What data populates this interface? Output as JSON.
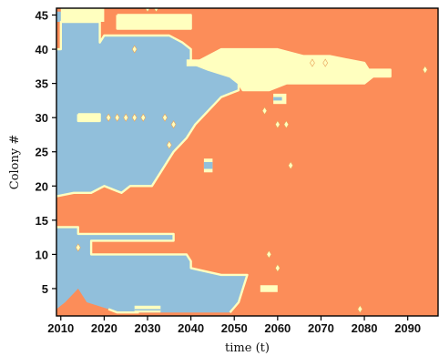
{
  "chart_data": {
    "type": "heatmap",
    "title": "",
    "xlabel": "time (t)",
    "ylabel": "Colony #",
    "xlim": [
      2009,
      2097
    ],
    "ylim": [
      1,
      46
    ],
    "x_ticks": [
      2010,
      2020,
      2030,
      2040,
      2050,
      2060,
      2070,
      2080,
      2090
    ],
    "y_ticks": [
      5,
      10,
      15,
      20,
      25,
      30,
      35,
      40,
      45
    ],
    "colors": {
      "0": "#91bfdb",
      "1": "#ffffbf",
      "2": "#fc8d59"
    },
    "state_legend": {
      "0": "blue",
      "1": "yellow",
      "2": "orange"
    },
    "background_state": 2,
    "regions": [
      {
        "state": 0,
        "polygon": [
          [
            2009,
            45.5
          ],
          [
            2009,
            40
          ],
          [
            2010,
            40
          ],
          [
            2010,
            44
          ],
          [
            2019,
            44
          ],
          [
            2019,
            41
          ],
          [
            2020,
            42
          ],
          [
            2035,
            42
          ],
          [
            2038,
            41
          ],
          [
            2040,
            40
          ],
          [
            2040,
            38
          ],
          [
            2044,
            37
          ],
          [
            2049,
            36
          ],
          [
            2051,
            35
          ],
          [
            2051,
            34
          ],
          [
            2047,
            33
          ],
          [
            2044,
            31
          ],
          [
            2041,
            29
          ],
          [
            2039,
            27
          ],
          [
            2036,
            25
          ],
          [
            2035,
            24
          ],
          [
            2033,
            22
          ],
          [
            2031,
            20
          ],
          [
            2026,
            20
          ],
          [
            2024,
            19
          ],
          [
            2020,
            20
          ],
          [
            2017,
            19
          ],
          [
            2013,
            19
          ],
          [
            2009,
            18.5
          ]
        ]
      },
      {
        "state": 0,
        "polygon": [
          [
            2009,
            14
          ],
          [
            2014,
            14
          ],
          [
            2014,
            13
          ],
          [
            2036,
            13
          ],
          [
            2036,
            12
          ],
          [
            2017,
            12
          ],
          [
            2017,
            10
          ],
          [
            2039,
            10
          ],
          [
            2040,
            9
          ],
          [
            2040,
            8
          ],
          [
            2047,
            7
          ],
          [
            2053,
            7
          ],
          [
            2052,
            5
          ],
          [
            2051,
            3
          ],
          [
            2049,
            1.5
          ],
          [
            2028,
            1.5
          ],
          [
            2023,
            1.5
          ],
          [
            2021,
            2
          ],
          [
            2016,
            3
          ],
          [
            2014,
            5
          ],
          [
            2011,
            3
          ],
          [
            2009,
            2
          ]
        ]
      },
      {
        "state": 0,
        "polygon": [
          [
            2009,
            45.5
          ],
          [
            2009,
            44
          ],
          [
            2019,
            44
          ],
          [
            2018,
            45.5
          ]
        ]
      },
      {
        "state": 1,
        "polygon": [
          [
            2041,
            38
          ],
          [
            2044,
            39
          ],
          [
            2047,
            40
          ],
          [
            2060,
            40
          ],
          [
            2066,
            39
          ],
          [
            2072,
            39
          ],
          [
            2080,
            38
          ],
          [
            2081,
            37
          ],
          [
            2086,
            37
          ],
          [
            2086,
            36
          ],
          [
            2082,
            36
          ],
          [
            2080,
            35
          ],
          [
            2062,
            35
          ],
          [
            2058,
            34
          ],
          [
            2052,
            34
          ],
          [
            2051,
            35
          ],
          [
            2049,
            36
          ],
          [
            2044,
            37
          ]
        ]
      },
      {
        "state": 1,
        "polygon": [
          [
            2023,
            45
          ],
          [
            2040,
            45
          ],
          [
            2040,
            43
          ],
          [
            2023,
            43
          ]
        ]
      },
      {
        "state": 1,
        "polygon": [
          [
            2039,
            38.5
          ],
          [
            2042,
            38.5
          ],
          [
            2042,
            37.5
          ],
          [
            2039,
            37.5
          ]
        ]
      },
      {
        "state": 1,
        "polygon": [
          [
            2010,
            46
          ],
          [
            2020,
            46
          ],
          [
            2020,
            44
          ],
          [
            2010,
            44
          ]
        ]
      },
      {
        "state": 1,
        "polygon": [
          [
            2014,
            30.5
          ],
          [
            2019,
            30.5
          ],
          [
            2019,
            29.5
          ],
          [
            2014,
            29.5
          ]
        ]
      },
      {
        "state": 1,
        "polygon": [
          [
            2059,
            33.5
          ],
          [
            2062,
            33.5
          ],
          [
            2062,
            32
          ],
          [
            2059,
            32
          ]
        ]
      },
      {
        "state": 1,
        "polygon": [
          [
            2043,
            24
          ],
          [
            2045,
            24
          ],
          [
            2045,
            22
          ],
          [
            2043,
            22
          ]
        ]
      },
      {
        "state": 1,
        "polygon": [
          [
            2027,
            2.5
          ],
          [
            2033,
            2.5
          ],
          [
            2033,
            1.5
          ],
          [
            2027,
            1.5
          ]
        ]
      },
      {
        "state": 1,
        "polygon": [
          [
            2056,
            5.5
          ],
          [
            2060,
            5.5
          ],
          [
            2060,
            4.5
          ],
          [
            2056,
            4.5
          ]
        ]
      },
      {
        "state": 0,
        "polygon": [
          [
            2043,
            23.5
          ],
          [
            2045,
            23.5
          ],
          [
            2045,
            22.5
          ],
          [
            2043,
            22.5
          ]
        ]
      },
      {
        "state": 0,
        "polygon": [
          [
            2059,
            33
          ],
          [
            2061,
            33
          ],
          [
            2061,
            32.5
          ],
          [
            2059,
            32.5
          ]
        ]
      },
      {
        "state": 1,
        "polygon": [
          [
            2014,
            30
          ],
          [
            2019,
            30
          ],
          [
            2019,
            29.8
          ],
          [
            2014,
            29.8
          ]
        ]
      },
      {
        "state": 0,
        "polygon": [
          [
            2027,
            2
          ],
          [
            2033,
            2
          ],
          [
            2033,
            1.8
          ],
          [
            2027,
            1.8
          ]
        ]
      }
    ],
    "borders": [
      [
        [
          2009,
          18.5
        ],
        [
          2013,
          19
        ],
        [
          2017,
          19
        ],
        [
          2020,
          20
        ],
        [
          2024,
          19
        ],
        [
          2026,
          20
        ],
        [
          2031,
          20
        ],
        [
          2033,
          22
        ],
        [
          2035,
          24
        ],
        [
          2036,
          25
        ],
        [
          2039,
          27
        ],
        [
          2041,
          29
        ],
        [
          2044,
          31
        ],
        [
          2047,
          33
        ],
        [
          2051,
          34
        ],
        [
          2051,
          35
        ],
        [
          2049,
          36
        ],
        [
          2044,
          37
        ],
        [
          2040,
          38
        ],
        [
          2040,
          40
        ],
        [
          2038,
          41
        ],
        [
          2035,
          42
        ],
        [
          2020,
          42
        ],
        [
          2019,
          41
        ],
        [
          2019,
          44
        ],
        [
          2010,
          44
        ],
        [
          2010,
          40
        ],
        [
          2009,
          40
        ]
      ],
      [
        [
          2009,
          14
        ],
        [
          2014,
          14
        ],
        [
          2014,
          13
        ],
        [
          2036,
          13
        ],
        [
          2036,
          12
        ],
        [
          2017,
          12
        ],
        [
          2017,
          10
        ],
        [
          2039,
          10
        ],
        [
          2040,
          9
        ],
        [
          2040,
          8
        ],
        [
          2047,
          7
        ],
        [
          2053,
          7
        ],
        [
          2052,
          5
        ],
        [
          2051,
          3
        ],
        [
          2049,
          1.5
        ]
      ],
      [
        [
          2041,
          38
        ],
        [
          2044,
          39
        ],
        [
          2047,
          40
        ],
        [
          2060,
          40
        ],
        [
          2066,
          39
        ],
        [
          2072,
          39
        ],
        [
          2080,
          38
        ],
        [
          2081,
          37
        ],
        [
          2086,
          37
        ],
        [
          2086,
          36
        ],
        [
          2082,
          36
        ],
        [
          2080,
          35
        ],
        [
          2062,
          35
        ],
        [
          2058,
          34
        ],
        [
          2052,
          34
        ],
        [
          2051,
          35
        ]
      ],
      [
        [
          2023,
          45
        ],
        [
          2040,
          45
        ],
        [
          2040,
          43
        ],
        [
          2023,
          43
        ],
        [
          2023,
          45
        ]
      ],
      [
        [
          2014,
          30.5
        ],
        [
          2019,
          30.5
        ],
        [
          2019,
          29.5
        ],
        [
          2014,
          29.5
        ],
        [
          2014,
          30.5
        ]
      ],
      [
        [
          2021,
          2
        ],
        [
          2023,
          1.5
        ],
        [
          2028,
          1.5
        ]
      ]
    ],
    "points": [
      {
        "x": 2027,
        "y": 40,
        "state": 1
      },
      {
        "x": 2021,
        "y": 30,
        "state": 1
      },
      {
        "x": 2023,
        "y": 30,
        "state": 1
      },
      {
        "x": 2025,
        "y": 30,
        "state": 1
      },
      {
        "x": 2027,
        "y": 30,
        "state": 1
      },
      {
        "x": 2029,
        "y": 30,
        "state": 1
      },
      {
        "x": 2034,
        "y": 30,
        "state": 1
      },
      {
        "x": 2036,
        "y": 29,
        "state": 1
      },
      {
        "x": 2057,
        "y": 31,
        "state": 1
      },
      {
        "x": 2060,
        "y": 29,
        "state": 1
      },
      {
        "x": 2062,
        "y": 29,
        "state": 1
      },
      {
        "x": 2058,
        "y": 10,
        "state": 1
      },
      {
        "x": 2060,
        "y": 8,
        "state": 1
      },
      {
        "x": 2063,
        "y": 23,
        "state": 1
      },
      {
        "x": 2014,
        "y": 11,
        "state": 1
      },
      {
        "x": 2035,
        "y": 26,
        "state": 1
      },
      {
        "x": 2094,
        "y": 37,
        "state": 1
      },
      {
        "x": 2079,
        "y": 2,
        "state": 1
      },
      {
        "x": 2030,
        "y": 46,
        "state": 1
      },
      {
        "x": 2032,
        "y": 46,
        "state": 1
      },
      {
        "x": 2068,
        "y": 38,
        "state": 1
      },
      {
        "x": 2071,
        "y": 38,
        "state": 1
      }
    ]
  }
}
